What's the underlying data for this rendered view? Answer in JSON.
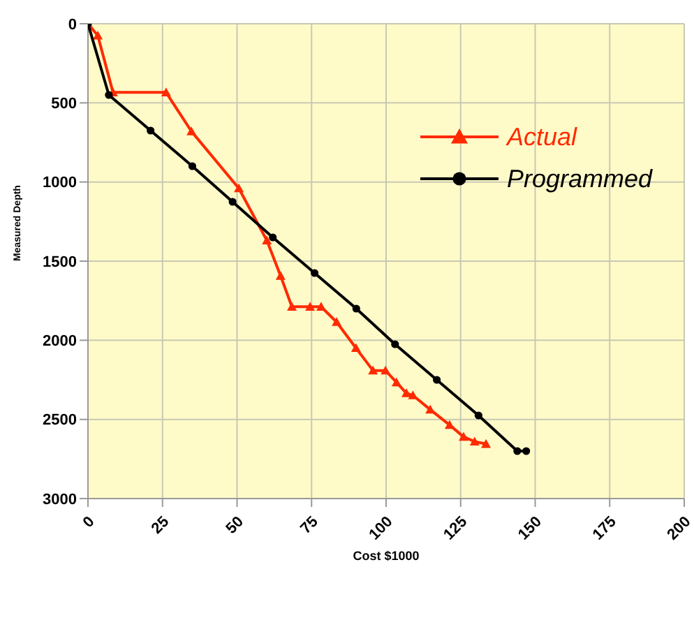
{
  "chart_data": {
    "type": "line",
    "xlabel": "Cost $1000",
    "ylabel": "Measured Depth",
    "xlim": [
      0,
      200
    ],
    "xticks": [
      0,
      25,
      50,
      75,
      100,
      125,
      150,
      175,
      200
    ],
    "ylim": [
      3000,
      0
    ],
    "yticks": [
      0,
      500,
      1000,
      1500,
      2000,
      2500,
      3000
    ],
    "grid": true,
    "legend": "top right",
    "line_style": "solid",
    "series": [
      {
        "name": "Actual",
        "color": "#ff2a00",
        "marker": "triangle",
        "x": [
          0,
          3.3,
          8.4,
          26.2,
          34.7,
          50.6,
          60,
          64.6,
          68.4,
          74.5,
          78.2,
          83.4,
          89.9,
          95.6,
          99.8,
          103.5,
          106.8,
          109,
          114.8,
          121.3,
          126,
          129.7,
          133.5
        ],
        "values": [
          0,
          75,
          434,
          434,
          680,
          1040,
          1369,
          1593,
          1788,
          1788,
          1788,
          1885,
          2049,
          2191,
          2191,
          2266,
          2334,
          2348,
          2438,
          2535,
          2610,
          2640,
          2655
        ]
      },
      {
        "name": "Programmed",
        "color": "#000000",
        "marker": "circle",
        "x": [
          0,
          7,
          21,
          35,
          48.5,
          62,
          76,
          90,
          103,
          117,
          131,
          144,
          147
        ],
        "values": [
          0,
          450,
          675,
          900,
          1125,
          1350,
          1575,
          1800,
          2025,
          2250,
          2475,
          2700,
          2700
        ]
      }
    ]
  }
}
